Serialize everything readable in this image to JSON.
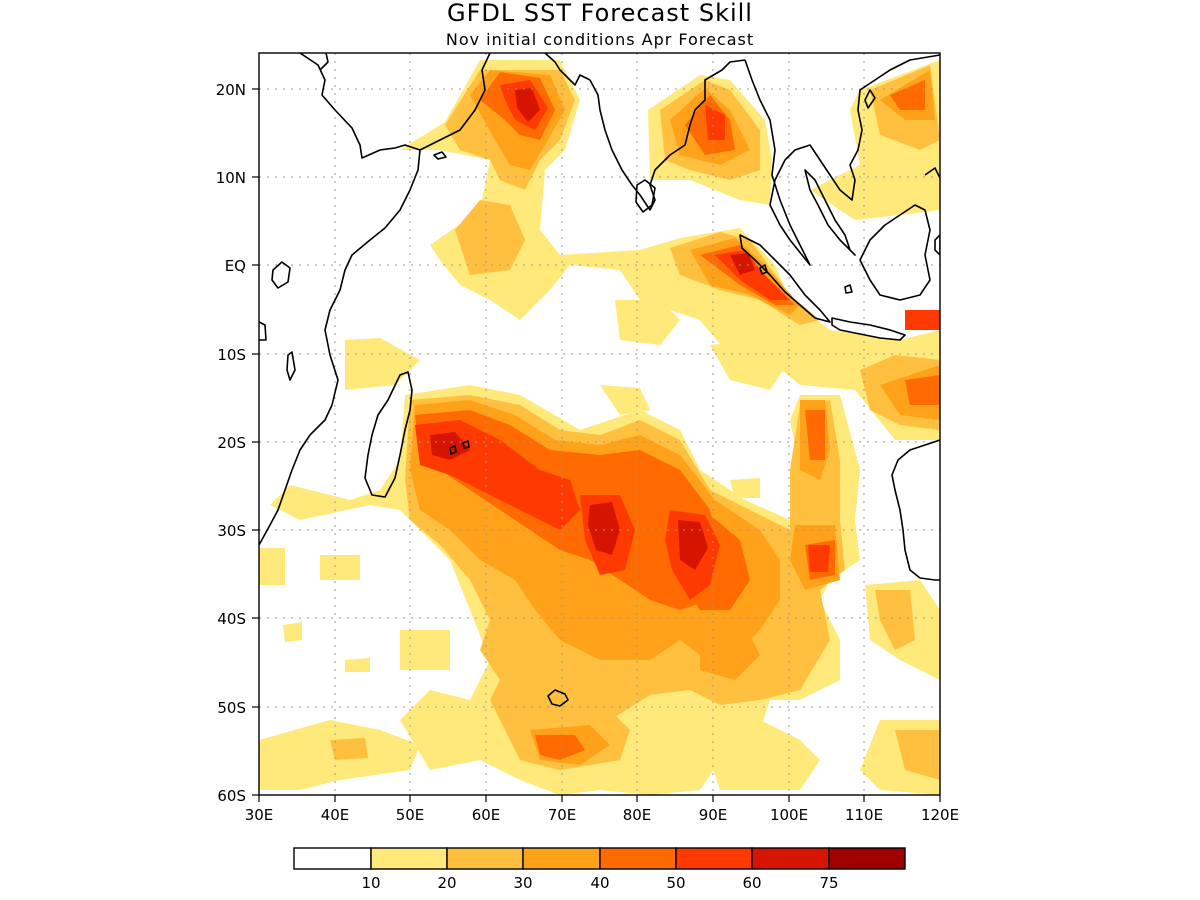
{
  "title": "GFDL SST Forecast Skill",
  "subtitle": "Nov initial conditions  Apr Forecast",
  "x_ticks": [
    "30E",
    "40E",
    "50E",
    "60E",
    "70E",
    "80E",
    "90E",
    "100E",
    "110E",
    "120E"
  ],
  "y_ticks": [
    "20N",
    "10N",
    "EQ",
    "10S",
    "20S",
    "30S",
    "40S",
    "50S",
    "60S"
  ],
  "colorbar": {
    "colors": [
      "#ffffff",
      "#ffe97a",
      "#ffc040",
      "#ffa21a",
      "#ff6b00",
      "#ff3a00",
      "#d61500",
      "#a00000"
    ],
    "labels": [
      "10",
      "20",
      "30",
      "40",
      "50",
      "60",
      "75"
    ]
  }
}
